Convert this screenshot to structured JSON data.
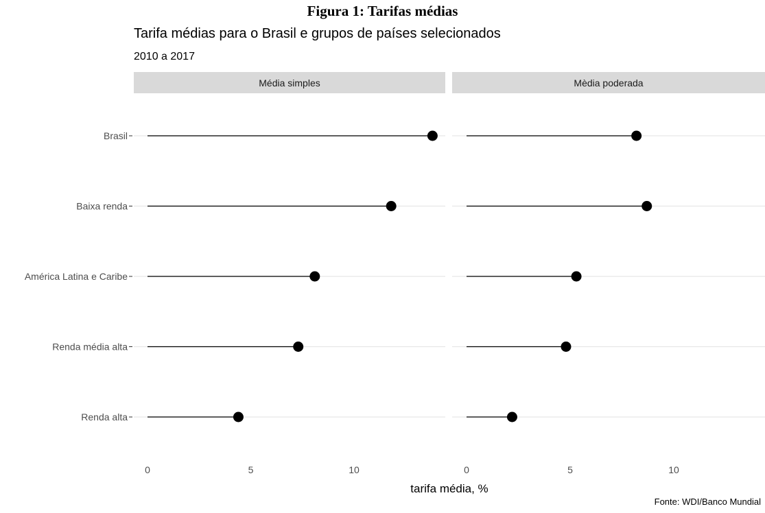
{
  "figure_title": "Figura 1: Tarifas médias",
  "chart_data": {
    "type": "scatter",
    "style": "lollipop",
    "title": "Tarifa médias para o Brasil e grupos de países selecionados",
    "subtitle": "2010 a 2017",
    "xlabel": "tarifa média, %",
    "ylabel": "",
    "caption": "Fonte: WDI/Banco Mundial",
    "categories": [
      "Brasil",
      "Baixa renda",
      "América Latina e Caribe",
      "Renda média alta",
      "Renda alta"
    ],
    "xlim": [
      0,
      14
    ],
    "xticks": [
      0,
      5,
      10
    ],
    "grid": true,
    "facets": [
      {
        "label": "Média simples",
        "values": [
          13.8,
          11.8,
          8.1,
          7.3,
          4.4
        ]
      },
      {
        "label": "Mèdia poderada",
        "values": [
          8.2,
          8.7,
          5.3,
          4.8,
          2.2
        ]
      }
    ]
  }
}
